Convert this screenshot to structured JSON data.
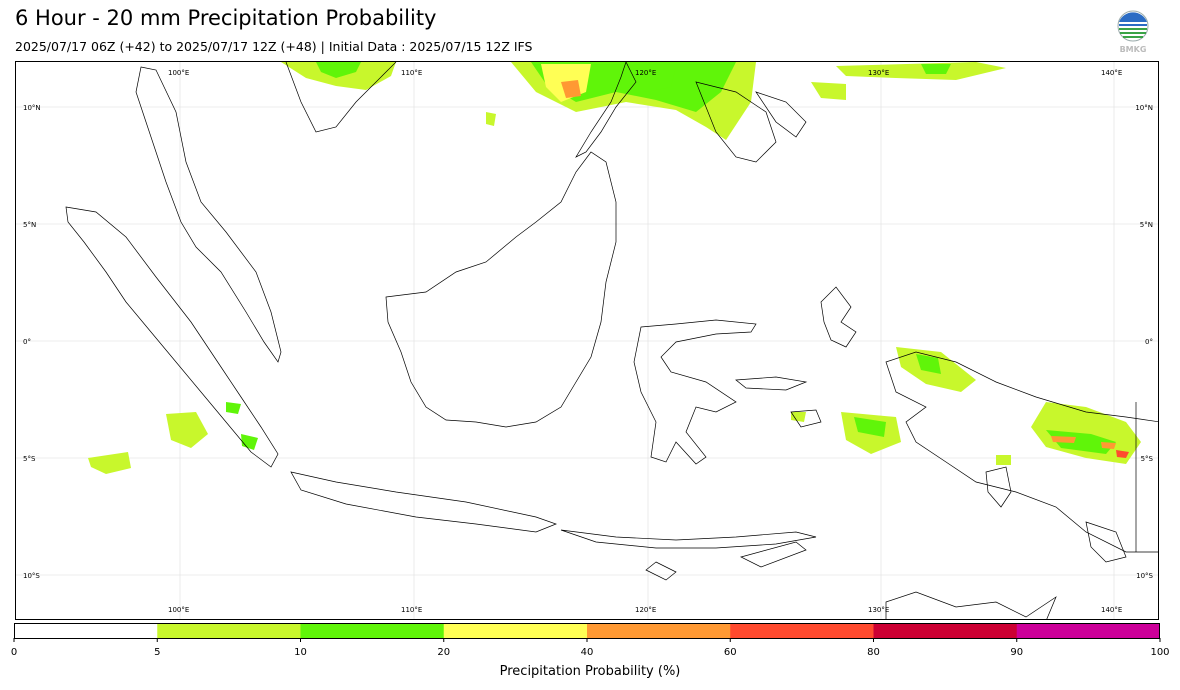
{
  "header": {
    "title": "6 Hour - 20 mm Precipitation Probability",
    "subtitle": "2025/07/17 06Z (+42) to 2025/07/17 12Z (+48) | Initial Data : 2025/07/15 12Z IFS",
    "logo_text": "BMKG"
  },
  "map": {
    "lon_labels": [
      "100°E",
      "110°E",
      "120°E",
      "130°E",
      "140°E"
    ],
    "lat_labels": [
      "10°N",
      "5°N",
      "0°",
      "5°S",
      "10°S"
    ]
  },
  "colorbar": {
    "label": "Precipitation Probability (%)",
    "ticks": [
      "0",
      "5",
      "10",
      "20",
      "40",
      "60",
      "80",
      "90",
      "100"
    ],
    "colors": [
      "#ffffff",
      "#c8f72c",
      "#60f509",
      "#ffff55",
      "#ff9933",
      "#ff4a2e",
      "#cc0033",
      "#cc0099"
    ]
  }
}
